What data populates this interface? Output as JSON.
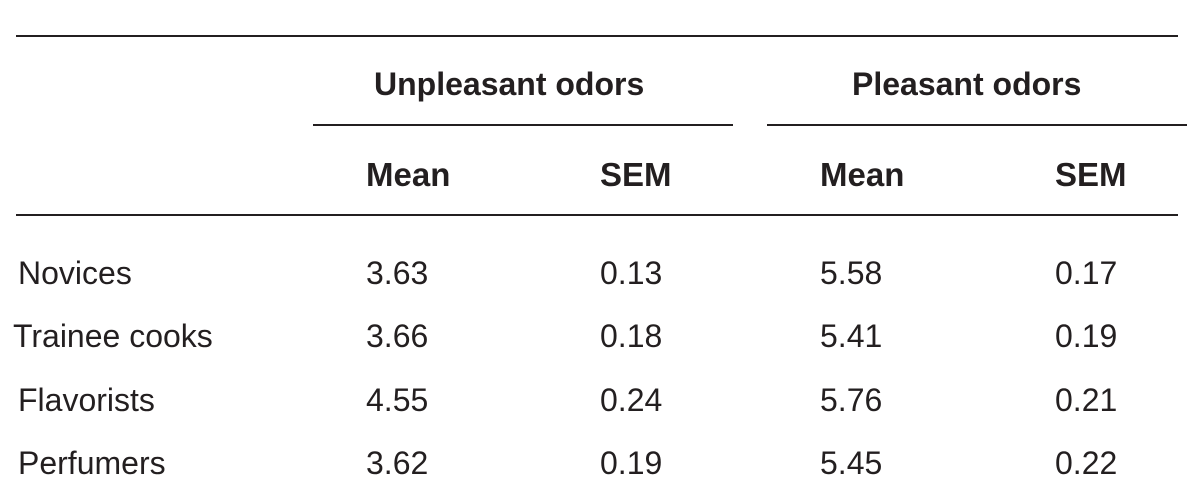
{
  "table": {
    "group_headers": [
      "Unpleasant odors",
      "Pleasant odors"
    ],
    "column_headers": [
      "Mean",
      "SEM",
      "Mean",
      "SEM"
    ],
    "rows": [
      {
        "label": "Novices",
        "values": [
          "3.63",
          "0.13",
          "5.58",
          "0.17"
        ]
      },
      {
        "label": "Trainee cooks",
        "values": [
          "3.66",
          "0.18",
          "5.41",
          "0.19"
        ]
      },
      {
        "label": "Flavorists",
        "values": [
          "4.55",
          "0.24",
          "5.76",
          "0.21"
        ]
      },
      {
        "label": "Perfumers",
        "values": [
          "3.62",
          "0.19",
          "5.45",
          "0.22"
        ]
      }
    ]
  }
}
